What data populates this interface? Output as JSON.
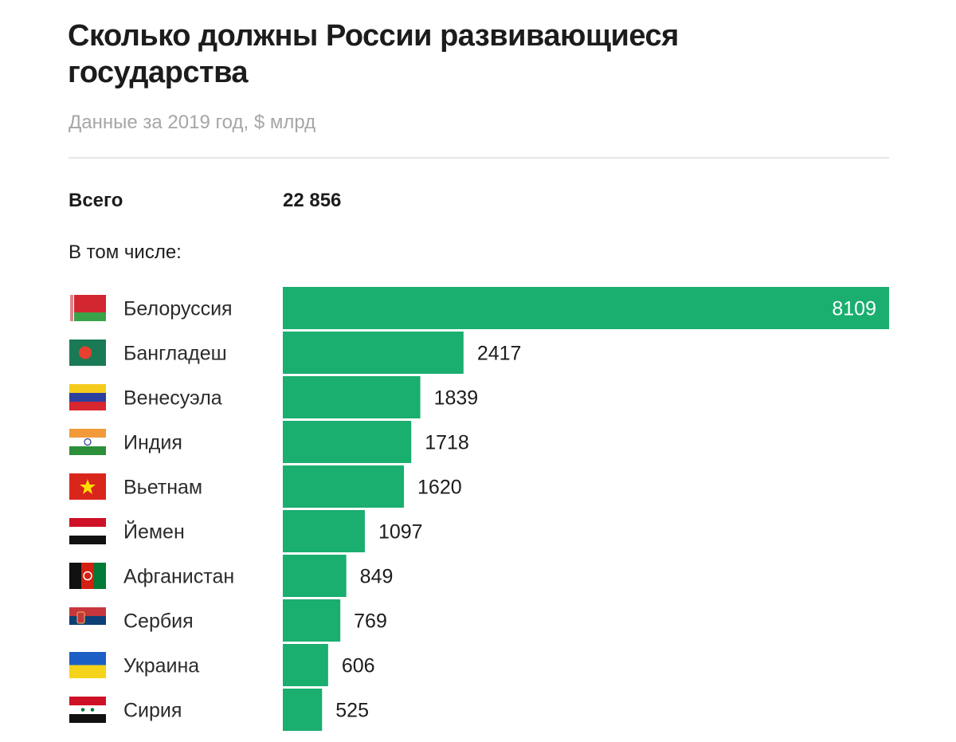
{
  "title": "Сколько должны России развивающиеся государства",
  "subtitle": "Данные за 2019 год, $ млрд",
  "total": {
    "label": "Всего",
    "value": "22 856"
  },
  "including_label": "В том числе:",
  "chart_data": {
    "type": "bar",
    "orientation": "horizontal",
    "categories": [
      "Белоруссия",
      "Бангладеш",
      "Венесуэла",
      "Индия",
      "Вьетнам",
      "Йемен",
      "Афганистан",
      "Сербия",
      "Украина",
      "Сирия"
    ],
    "values": [
      8109,
      2417,
      1839,
      1718,
      1620,
      1097,
      849,
      769,
      606,
      525
    ],
    "value_labels": [
      "8109",
      "2417",
      "1839",
      "1718",
      "1620",
      "1097",
      "849",
      "769",
      "606",
      "525"
    ],
    "flags": [
      "belarus-flag",
      "bangladesh-flag",
      "venezuela-flag",
      "india-flag",
      "vietnam-flag",
      "yemen-flag",
      "afghanistan-flag",
      "serbia-flag",
      "ukraine-flag",
      "syria-flag"
    ],
    "bar_color": "#1aae6f",
    "xlim": [
      0,
      8109
    ],
    "grid": false,
    "axes": false
  }
}
